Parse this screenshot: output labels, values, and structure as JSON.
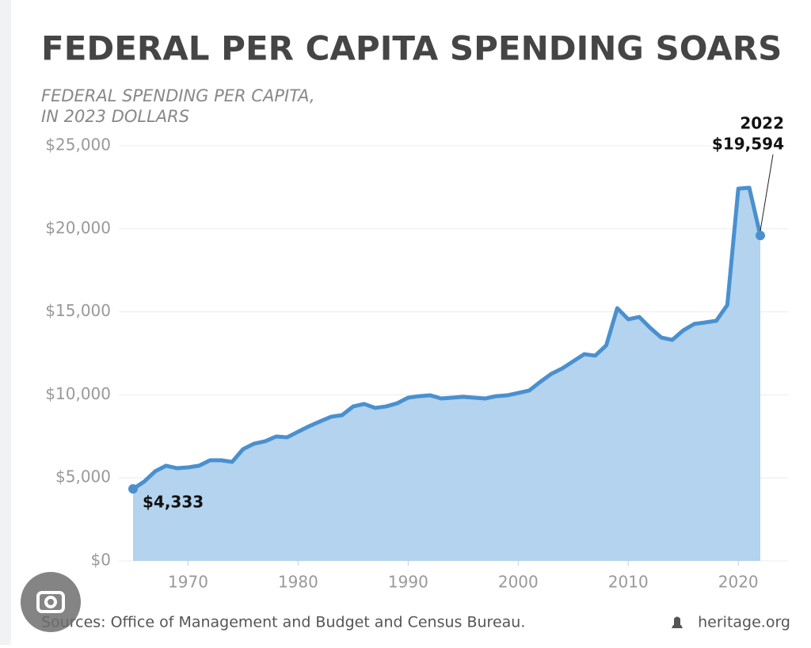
{
  "chart_data": {
    "type": "area",
    "title": "FEDERAL PER CAPITA SPENDING SOARS",
    "subtitle": [
      "FEDERAL SPENDING PER CAPITA,",
      "IN 2023 DOLLARS"
    ],
    "x": [
      1965,
      1966,
      1967,
      1968,
      1969,
      1970,
      1971,
      1972,
      1973,
      1974,
      1975,
      1976,
      1977,
      1978,
      1979,
      1980,
      1981,
      1982,
      1983,
      1984,
      1985,
      1986,
      1987,
      1988,
      1989,
      1990,
      1991,
      1992,
      1993,
      1994,
      1995,
      1996,
      1997,
      1998,
      1999,
      2000,
      2001,
      2002,
      2003,
      2004,
      2005,
      2006,
      2007,
      2008,
      2009,
      2010,
      2011,
      2012,
      2013,
      2014,
      2015,
      2016,
      2017,
      2018,
      2019,
      2020,
      2021,
      2022
    ],
    "values": [
      4333,
      4770,
      5390,
      5730,
      5580,
      5630,
      5730,
      6060,
      6060,
      5960,
      6730,
      7060,
      7200,
      7490,
      7440,
      7780,
      8110,
      8400,
      8680,
      8780,
      9300,
      9450,
      9210,
      9300,
      9490,
      9830,
      9920,
      9970,
      9780,
      9830,
      9880,
      9830,
      9780,
      9920,
      9970,
      10110,
      10260,
      10780,
      11260,
      11590,
      12020,
      12450,
      12360,
      12980,
      15220,
      14550,
      14690,
      14030,
      13450,
      13310,
      13880,
      14270,
      14360,
      14460,
      15410,
      22420,
      22470,
      19594
    ],
    "color": "#4a90cf",
    "fill": "#b3d3ee",
    "xlim": [
      1965,
      2022
    ],
    "xticks": [
      1970,
      1980,
      1990,
      2000,
      2010,
      2020
    ],
    "ylim": [
      0,
      25000
    ],
    "yticks": [
      {
        "value": 0,
        "label": "$0"
      },
      {
        "value": 5000,
        "label": "$5,000"
      },
      {
        "value": 10000,
        "label": "$10,000"
      },
      {
        "value": 15000,
        "label": "$15,000"
      },
      {
        "value": 20000,
        "label": "$20,000"
      },
      {
        "value": 25000,
        "label": "$25,000"
      }
    ],
    "grid": true,
    "annotations": [
      "$4,333",
      "2022",
      "$19,594"
    ],
    "source": "Sources: Office of Management and Budget and Census Bureau.",
    "brand": "heritage.org"
  }
}
